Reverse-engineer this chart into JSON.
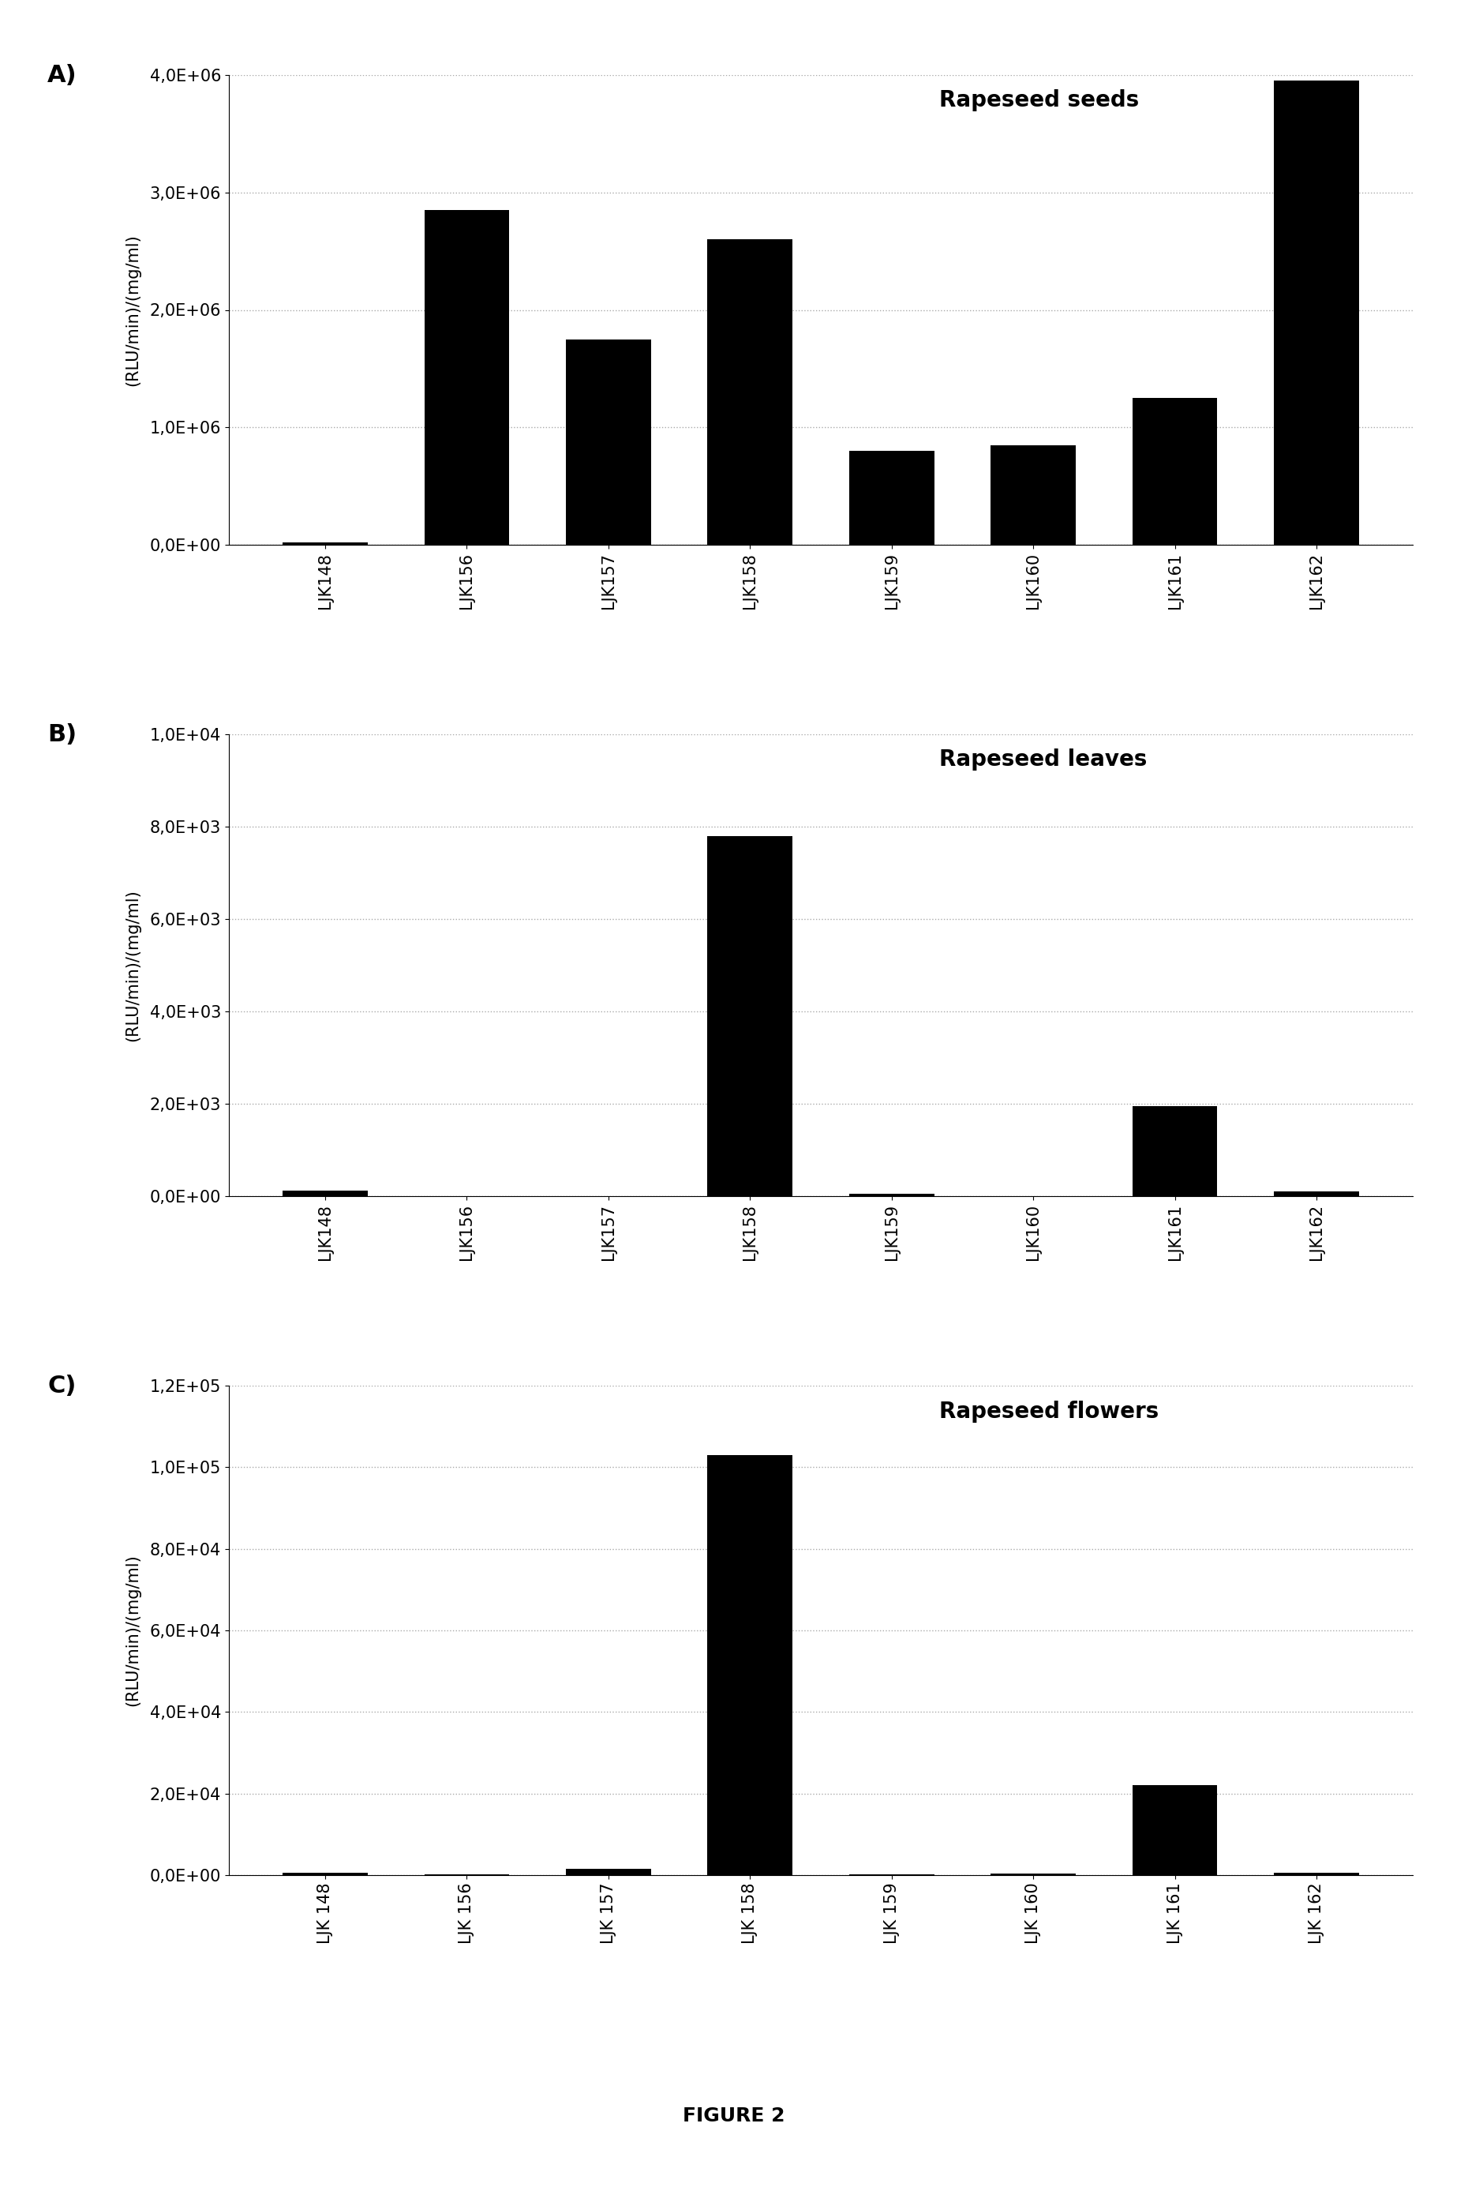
{
  "panel_A": {
    "title": "Rapeseed seeds",
    "categories": [
      "LJK148",
      "LJK156",
      "LJK157",
      "LJK158",
      "LJK159",
      "LJK160",
      "LJK161",
      "LJK162"
    ],
    "values": [
      20000,
      2850000,
      1750000,
      2600000,
      800000,
      850000,
      1250000,
      3950000
    ],
    "ylim": [
      0,
      4000000
    ],
    "yticks": [
      0,
      1000000,
      2000000,
      3000000,
      4000000
    ],
    "ytick_labels": [
      "0,0E+00",
      "1,0E+06",
      "2,0E+06",
      "3,0E+06",
      "4,0E+06"
    ],
    "ylabel": "(RLU/min)/(mg/ml)",
    "label": "A)"
  },
  "panel_B": {
    "title": "Rapeseed leaves",
    "categories": [
      "LJK148",
      "LJK156",
      "LJK157",
      "LJK158",
      "LJK159",
      "LJK160",
      "LJK161",
      "LJK162"
    ],
    "values": [
      120,
      0,
      0,
      7800,
      50,
      0,
      1950,
      100
    ],
    "ylim": [
      0,
      10000
    ],
    "yticks": [
      0,
      2000,
      4000,
      6000,
      8000,
      10000
    ],
    "ytick_labels": [
      "0,0E+00",
      "2,0E+03",
      "4,0E+03",
      "6,0E+03",
      "8,0E+03",
      "1,0E+04"
    ],
    "ylabel": "(RLU/min)/(mg/ml)",
    "label": "B)"
  },
  "panel_C": {
    "title": "Rapeseed flowers",
    "categories": [
      "LJK 148",
      "LJK 156",
      "LJK 157",
      "LJK 158",
      "LJK 159",
      "LJK 160",
      "LJK 161",
      "LJK 162"
    ],
    "values": [
      500,
      200,
      1500,
      103000,
      200,
      300,
      22000,
      500
    ],
    "ylim": [
      0,
      120000
    ],
    "yticks": [
      0,
      20000,
      40000,
      60000,
      80000,
      100000,
      120000
    ],
    "ytick_labels": [
      "0,0E+00",
      "2,0E+04",
      "4,0E+04",
      "6,0E+04",
      "8,0E+04",
      "1,0E+05",
      "1,2E+05"
    ],
    "ylabel": "(RLU/min)/(mg/ml)",
    "label": "C)"
  },
  "figure_title": "FIGURE 2",
  "bar_color": "#000000",
  "background_color": "#ffffff",
  "grid_color": "#aaaaaa",
  "label_fontsize": 22,
  "tick_fontsize": 15,
  "ylabel_fontsize": 15,
  "title_fontsize": 20,
  "figure_title_fontsize": 18
}
